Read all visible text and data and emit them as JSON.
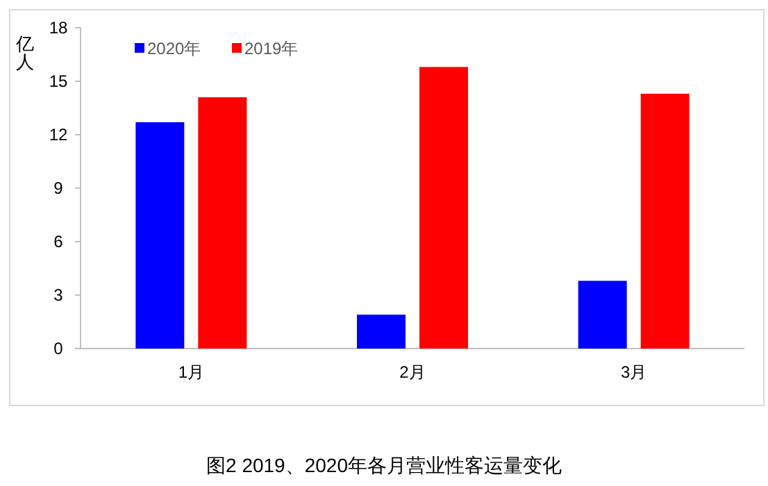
{
  "chart_data": {
    "type": "bar",
    "title": "图2 2019、2020年各月营业性客运量变化",
    "ylabel": "亿人",
    "categories": [
      "1月",
      "2月",
      "3月"
    ],
    "series": [
      {
        "name": "2020年",
        "color": "#0000ff",
        "values": [
          12.7,
          1.9,
          3.8
        ]
      },
      {
        "name": "2019年",
        "color": "#ff0000",
        "values": [
          14.1,
          15.8,
          14.3
        ]
      }
    ],
    "ylim": [
      0,
      18
    ],
    "yticks": [
      0,
      3,
      6,
      9,
      12,
      15,
      18
    ],
    "grid": false,
    "legend": "top left"
  }
}
